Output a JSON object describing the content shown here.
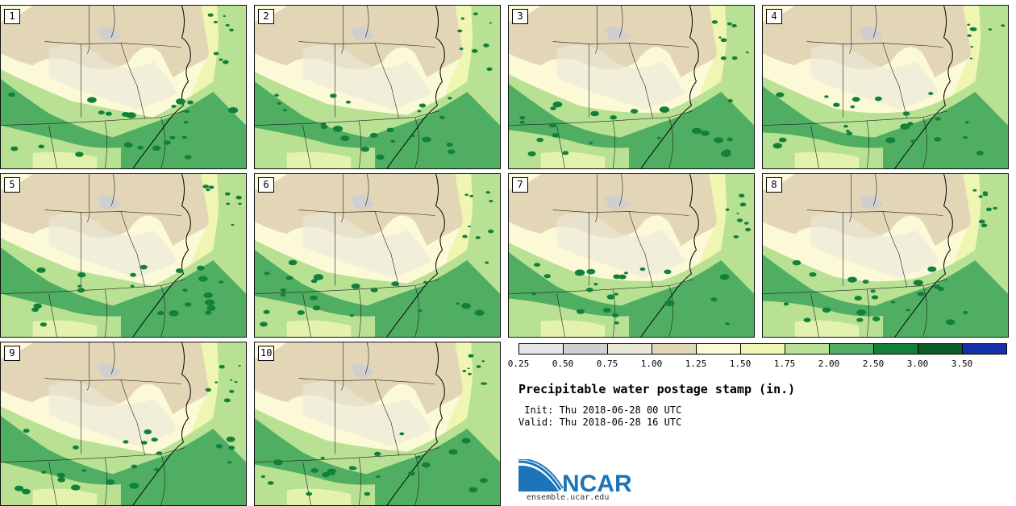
{
  "panels": [
    {
      "label": "1"
    },
    {
      "label": "2"
    },
    {
      "label": "3"
    },
    {
      "label": "4"
    },
    {
      "label": "5"
    },
    {
      "label": "6"
    },
    {
      "label": "7"
    },
    {
      "label": "8"
    },
    {
      "label": "9"
    },
    {
      "label": "10"
    }
  ],
  "legend": {
    "colors": [
      "#e6e6e6",
      "#cfcfcf",
      "#ebe8da",
      "#e3d6b7",
      "#fbf9d6",
      "#eef6b2",
      "#b8e194",
      "#4fae62",
      "#13803a",
      "#0b5a28",
      "#1430ab"
    ],
    "ticks": [
      "0.25",
      "0.50",
      "0.75",
      "1.00",
      "1.25",
      "1.50",
      "1.75",
      "2.00",
      "2.50",
      "3.00",
      "3.50"
    ]
  },
  "title": "Precipitable water postage stamp (in.)",
  "init": " Init: Thu 2018-06-28 00 UTC",
  "valid": "Valid: Thu 2018-06-28 16 UTC",
  "logo": {
    "text": "NCAR",
    "url": "ensemble.ucar.edu",
    "color": "#1b75b8"
  }
}
